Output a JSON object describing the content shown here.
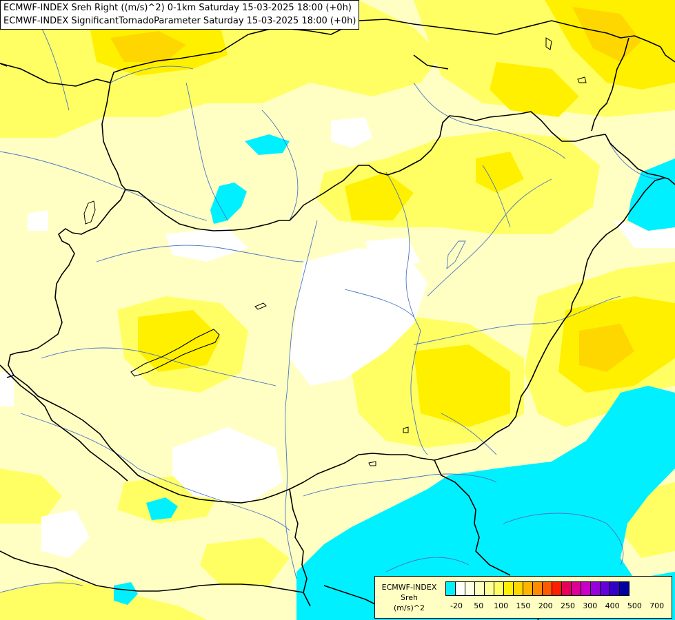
{
  "header": {
    "line1": "ECMWF-INDEX Sreh Right ((m/s)^2) 0-1km Saturday 15-03-2025 18:00 (+0h)",
    "line2": "ECMWF-INDEX SignificantTornadoParameter Saturday 15-03-2025 18:00 (+0h)"
  },
  "legend": {
    "title1": "ECMWF-INDEX",
    "title2": "Sreh",
    "title3": "(m/s)^2",
    "colors": [
      "#00f0ff",
      "#ffffff",
      "#ffffe6",
      "#ffffc0",
      "#ffff96",
      "#ffff64",
      "#fff000",
      "#ffd700",
      "#ffb400",
      "#ff8c00",
      "#ff5a00",
      "#ff1e00",
      "#e6005a",
      "#dc0096",
      "#c800c8",
      "#9600dc",
      "#6400dc",
      "#3200c8",
      "#0000a0"
    ],
    "labels": [
      "-20",
      "50",
      "100",
      "150",
      "200",
      "250",
      "300",
      "400",
      "500",
      "700"
    ]
  },
  "map": {
    "fill_colors": {
      "light_yellow": "#ffffc4",
      "white": "#ffffff",
      "yellow": "#ffff64",
      "bright_yellow": "#fff000",
      "gold": "#ffd700",
      "cyan": "#00f0ff"
    }
  }
}
